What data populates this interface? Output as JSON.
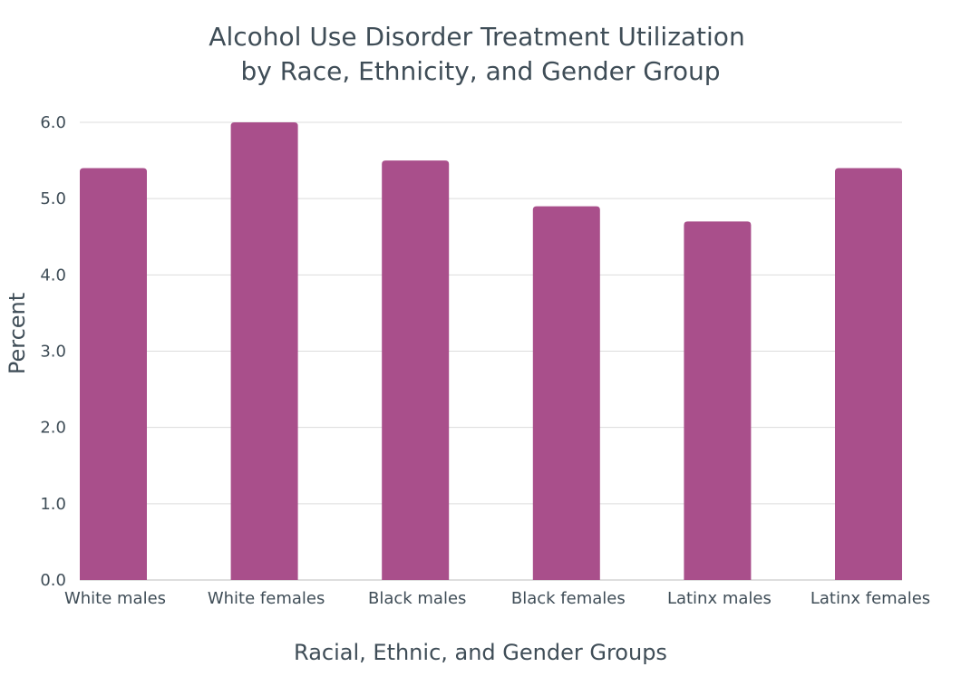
{
  "chart_data": {
    "type": "bar",
    "title_lines": [
      "Alcohol Use Disorder Treatment Utilization",
      "by Race, Ethnicity, and Gender Group"
    ],
    "xlabel": "Racial, Ethnic, and Gender Groups",
    "ylabel": "Percent",
    "categories": [
      "White males",
      "White females",
      "Black males",
      "Black females",
      "Latinx males",
      "Latinx females"
    ],
    "values": [
      5.4,
      6.0,
      5.5,
      4.9,
      4.7,
      5.4
    ],
    "yticks": [
      "0.0",
      "1.0",
      "2.0",
      "3.0",
      "4.0",
      "5.0",
      "6.0"
    ],
    "ylim": [
      0,
      6
    ],
    "grid": true,
    "legend": "none",
    "bar_color": "#a94f8b"
  }
}
